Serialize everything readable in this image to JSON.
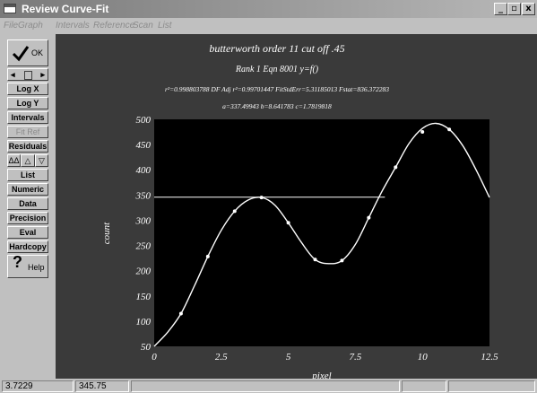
{
  "window": {
    "title": "Review Curve-Fit",
    "minimize": "_",
    "restore": "▫",
    "close": "x"
  },
  "menu": [
    "File",
    "Graph",
    "Intervals",
    "Reference",
    "Scan",
    "List"
  ],
  "sidebar": {
    "ok": "OK",
    "log_x": "Log X",
    "log_y": "Log Y",
    "intervals": "Intervals",
    "fit_ref": "Fit Ref",
    "residuals": "Residuals",
    "list": "List",
    "numeric": "Numeric",
    "data": "Data",
    "precision": "Precision",
    "eval": "Eval",
    "hardcopy": "Hardcopy",
    "help": "Help"
  },
  "status": {
    "x": "3.7229",
    "y": "345.75"
  },
  "chart_data": {
    "type": "line",
    "title": "butterworth order 11 cut off .45",
    "subtitle": "Rank 1  Eqn 8001  y=f()",
    "stats_line": "r²=0.998803788  DF Adj r²=0.99701447  FitStdErr=5.31185013  Fstat=836.372283",
    "params_line": "a=337.49943  b=8.641783  c=1.7819818",
    "xlabel": "pixel",
    "ylabel": "count",
    "xlim": [
      0,
      12.5
    ],
    "ylim": [
      50,
      500
    ],
    "x_ticks": [
      "0",
      "2.5",
      "5",
      "7.5",
      "10",
      "12.5"
    ],
    "y_ticks": [
      "500",
      "450",
      "400",
      "350",
      "300",
      "250",
      "200",
      "150",
      "100",
      "50"
    ],
    "reference_line_y": 345.75,
    "points": {
      "x": [
        1,
        2,
        3,
        4,
        5,
        6,
        7,
        8,
        9,
        10,
        11
      ],
      "y": [
        115,
        228,
        318,
        345,
        295,
        222,
        220,
        305,
        405,
        475,
        480
      ]
    },
    "curve": {
      "x": [
        0,
        0.5,
        1,
        1.5,
        2,
        2.5,
        3,
        3.5,
        4,
        4.5,
        5,
        5.5,
        6,
        6.5,
        7,
        7.5,
        8,
        8.5,
        9,
        9.5,
        10,
        10.5,
        11,
        11.5,
        12,
        12.5
      ],
      "y": [
        50,
        78,
        115,
        170,
        228,
        280,
        318,
        340,
        345,
        330,
        295,
        255,
        222,
        214,
        220,
        252,
        305,
        358,
        405,
        452,
        482,
        492,
        480,
        448,
        400,
        345
      ]
    }
  }
}
